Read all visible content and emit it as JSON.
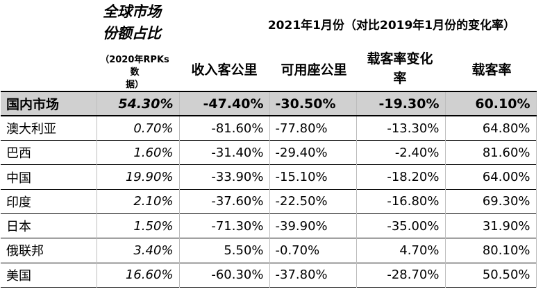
{
  "header": {
    "share_title_line1": "全球市场",
    "share_title_line2": "份额占比",
    "share_note_line1": "（2020年RPKs数",
    "share_note_line2": "据）",
    "period_title": "2021年1月份（对比2019年1月份的变化率）",
    "col_rpk": "收入客公里",
    "col_ask": "可用座公里",
    "col_lf_change_line1": "载客率变化",
    "col_lf_change_line2": "率",
    "col_lf": "载客率"
  },
  "rows": [
    {
      "name": "国内市场",
      "share": "54.30%",
      "rpk": "-47.40%",
      "ask": "-30.50%",
      "lf_change": "-19.30%",
      "lf": "60.10%"
    },
    {
      "name": "澳大利亚",
      "share": "0.70%",
      "rpk": "-81.60%",
      "ask": "-77.80%",
      "lf_change": "-13.30%",
      "lf": "64.80%"
    },
    {
      "name": "巴西",
      "share": "1.60%",
      "rpk": "-31.40%",
      "ask": "-29.40%",
      "lf_change": "-2.40%",
      "lf": "81.60%"
    },
    {
      "name": "中国",
      "share": "19.90%",
      "rpk": "-33.90%",
      "ask": "-15.10%",
      "lf_change": "-18.20%",
      "lf": "64.00%"
    },
    {
      "name": "印度",
      "share": "2.10%",
      "rpk": "-37.60%",
      "ask": "-22.50%",
      "lf_change": "-16.80%",
      "lf": "69.30%"
    },
    {
      "name": "日本",
      "share": "1.50%",
      "rpk": "-71.30%",
      "ask": "-39.90%",
      "lf_change": "-35.00%",
      "lf": "31.90%"
    },
    {
      "name": "俄联邦",
      "share": "3.40%",
      "rpk": "5.50%",
      "ask": "-0.70%",
      "lf_change": "4.70%",
      "lf": "80.10%"
    },
    {
      "name": "美国",
      "share": "16.60%",
      "rpk": "-60.30%",
      "ask": "-37.80%",
      "lf_change": "-28.70%",
      "lf": "50.50%"
    }
  ]
}
